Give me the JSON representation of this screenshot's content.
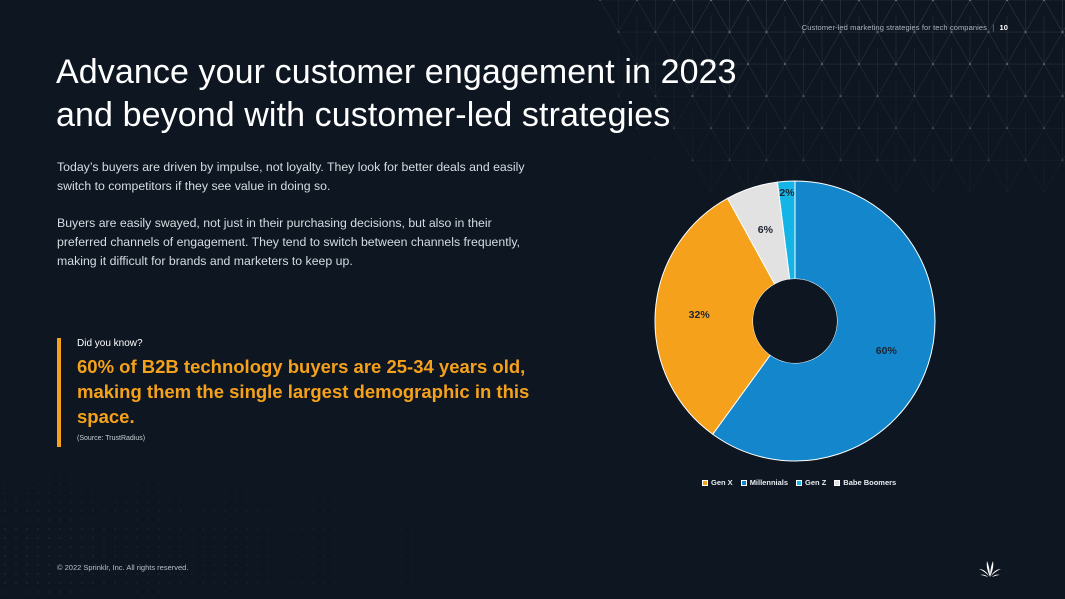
{
  "header": {
    "doc_title": "Customer-led marketing strategies for tech companies",
    "separator": "|",
    "page_number": "10"
  },
  "title": {
    "line1": "Advance your customer engagement in 2023",
    "line2": "and beyond with customer-led strategies"
  },
  "body": {
    "paragraph1": "Today’s buyers are driven by impulse, not loyalty. They look for better deals and easily switch to competitors if they see value in doing so.",
    "paragraph2": "Buyers are easily swayed, not just in their purchasing decisions, but also in their preferred channels of engagement. They tend to switch between channels frequently, making it difficult for brands and marketers to keep up."
  },
  "callout": {
    "label": "Did you know?",
    "stat": "60% of B2B technology buyers are 25-34 years old, making them the single largest demographic in this space.",
    "source": "(Source: TrustRadius)",
    "accent_color": "#f5a11c"
  },
  "chart_data": {
    "type": "pie",
    "subtype": "donut",
    "title": "",
    "categories": [
      "Millennials",
      "Gen X",
      "Babe Boomers",
      "Gen Z"
    ],
    "values": [
      60,
      32,
      6,
      2
    ],
    "labels": [
      "60%",
      "32%",
      "6%",
      "2%"
    ],
    "colors": [
      "#1487cc",
      "#f5a11c",
      "#e2e2e2",
      "#14b4e6"
    ],
    "start_angle": "12 o'clock",
    "direction": "clockwise",
    "legend": {
      "position": "bottom",
      "entries": [
        {
          "label": "Gen X",
          "color": "#f5a11c"
        },
        {
          "label": "Millennials",
          "color": "#1487cc"
        },
        {
          "label": "Gen Z",
          "color": "#14b4e6"
        },
        {
          "label": "Babe Boomers",
          "color": "#e2e2e2"
        }
      ]
    }
  },
  "footer": {
    "copyright": "© 2022 Sprinklr, Inc. All rights reserved."
  },
  "logo": {
    "icon": "sprinklr-logo-icon"
  }
}
